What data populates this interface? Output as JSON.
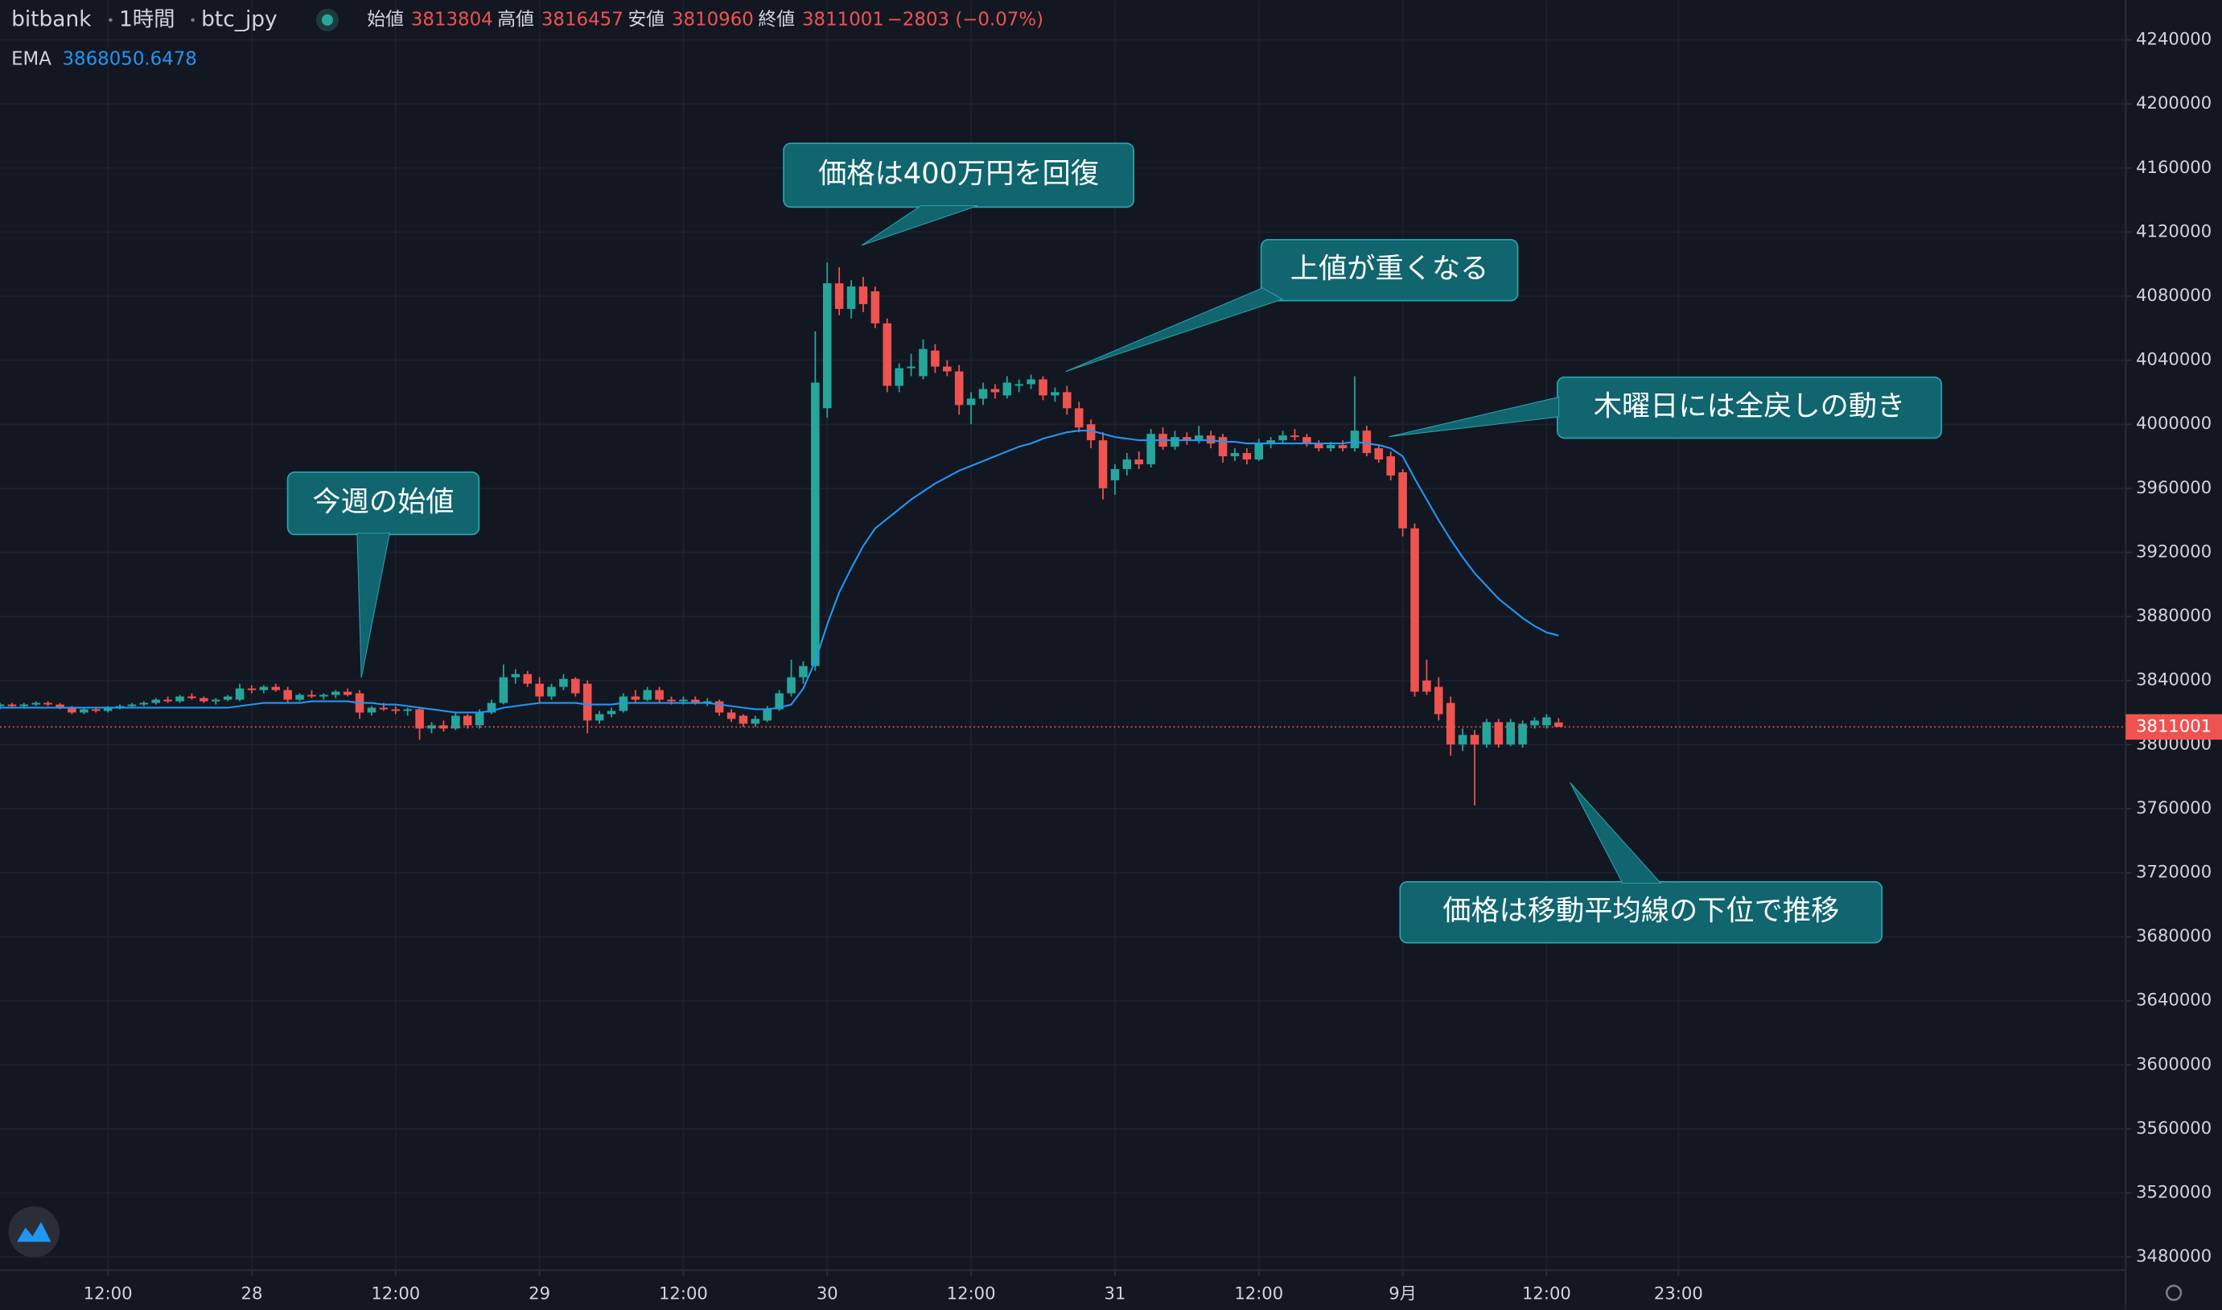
{
  "header": {
    "exchange": "bitbank",
    "interval": "1時間",
    "symbol": "btc_jpy",
    "labels": [
      "始値",
      "高値",
      "安値",
      "終値"
    ],
    "change": "−2803 (−0.07%)"
  },
  "chart_data": {
    "type": "candlestick",
    "up_color": "#26a69a",
    "down_color": "#ef5350",
    "grid": true,
    "xlim": [
      0,
      177.3
    ],
    "ylim": [
      3471800,
      4264800
    ],
    "xticks": [
      {
        "value": 9,
        "label": "12:00"
      },
      {
        "value": 21,
        "label": "28"
      },
      {
        "value": 33,
        "label": "12:00"
      },
      {
        "value": 45,
        "label": "29"
      },
      {
        "value": 57,
        "label": "12:00"
      },
      {
        "value": 69,
        "label": "30"
      },
      {
        "value": 81,
        "label": "12:00"
      },
      {
        "value": 93,
        "label": "31"
      },
      {
        "value": 105,
        "label": "12:00"
      },
      {
        "value": 117,
        "label": "9月"
      },
      {
        "value": 129,
        "label": "12:00"
      },
      {
        "value": 140,
        "label": "23:00"
      }
    ],
    "yticks": [
      3480000,
      3520000,
      3560000,
      3600000,
      3640000,
      3680000,
      3720000,
      3760000,
      3800000,
      3840000,
      3880000,
      3920000,
      3960000,
      4000000,
      4040000,
      4080000,
      4120000,
      4160000,
      4200000,
      4240000
    ],
    "ohlc": [
      [
        3824000,
        3826000,
        3822000,
        3825000
      ],
      [
        3825000,
        3826000,
        3823000,
        3824000
      ],
      [
        3824000,
        3826000,
        3823000,
        3825000
      ],
      [
        3825000,
        3827000,
        3824000,
        3826000
      ],
      [
        3826000,
        3827000,
        3824000,
        3825000
      ],
      [
        3825000,
        3826000,
        3822000,
        3823000
      ],
      [
        3823000,
        3824000,
        3819000,
        3820000
      ],
      [
        3820000,
        3823000,
        3819000,
        3822000
      ],
      [
        3822000,
        3823000,
        3820000,
        3821000
      ],
      [
        3821000,
        3824000,
        3820000,
        3823000
      ],
      [
        3823000,
        3825000,
        3822000,
        3824000
      ],
      [
        3824000,
        3826000,
        3823000,
        3825000
      ],
      [
        3825000,
        3827000,
        3824000,
        3826000
      ],
      [
        3826000,
        3829000,
        3825000,
        3828000
      ],
      [
        3828000,
        3830000,
        3826000,
        3827000
      ],
      [
        3827000,
        3831000,
        3826000,
        3830000
      ],
      [
        3830000,
        3832000,
        3828000,
        3829000
      ],
      [
        3829000,
        3830000,
        3826000,
        3827000
      ],
      [
        3827000,
        3829000,
        3825000,
        3828000
      ],
      [
        3828000,
        3831000,
        3827000,
        3830000
      ],
      [
        3828000,
        3838000,
        3827000,
        3835000
      ],
      [
        3835000,
        3837000,
        3832000,
        3834000
      ],
      [
        3834000,
        3837000,
        3832000,
        3836000
      ],
      [
        3836000,
        3838000,
        3833000,
        3834000
      ],
      [
        3834000,
        3836000,
        3826000,
        3828000
      ],
      [
        3828000,
        3832000,
        3827000,
        3831000
      ],
      [
        3831000,
        3834000,
        3829000,
        3830000
      ],
      [
        3830000,
        3832000,
        3828000,
        3831000
      ],
      [
        3831000,
        3834000,
        3829000,
        3833000
      ],
      [
        3833000,
        3835000,
        3830000,
        3831000
      ],
      [
        3832000,
        3834000,
        3816000,
        3820000
      ],
      [
        3820000,
        3824000,
        3818000,
        3823000
      ],
      [
        3823000,
        3826000,
        3821000,
        3822000
      ],
      [
        3822000,
        3824000,
        3819000,
        3821000
      ],
      [
        3821000,
        3823000,
        3818000,
        3822000
      ],
      [
        3822000,
        3823000,
        3803000,
        3810000
      ],
      [
        3810000,
        3814000,
        3807000,
        3812000
      ],
      [
        3812000,
        3815000,
        3808000,
        3810000
      ],
      [
        3810000,
        3820000,
        3809000,
        3818000
      ],
      [
        3818000,
        3819000,
        3810000,
        3812000
      ],
      [
        3812000,
        3822000,
        3810000,
        3820000
      ],
      [
        3820000,
        3828000,
        3819000,
        3826000
      ],
      [
        3826000,
        3850000,
        3825000,
        3842000
      ],
      [
        3842000,
        3847000,
        3838000,
        3844000
      ],
      [
        3844000,
        3846000,
        3836000,
        3838000
      ],
      [
        3838000,
        3842000,
        3826000,
        3830000
      ],
      [
        3830000,
        3838000,
        3828000,
        3836000
      ],
      [
        3836000,
        3844000,
        3834000,
        3841000
      ],
      [
        3841000,
        3842000,
        3830000,
        3832000
      ],
      [
        3838000,
        3840000,
        3807000,
        3815000
      ],
      [
        3815000,
        3821000,
        3813000,
        3819000
      ],
      [
        3819000,
        3823000,
        3817000,
        3821000
      ],
      [
        3821000,
        3832000,
        3820000,
        3830000
      ],
      [
        3830000,
        3834000,
        3826000,
        3828000
      ],
      [
        3828000,
        3836000,
        3827000,
        3834000
      ],
      [
        3834000,
        3836000,
        3826000,
        3828000
      ],
      [
        3828000,
        3830000,
        3825000,
        3827000
      ],
      [
        3827000,
        3830000,
        3825000,
        3828000
      ],
      [
        3828000,
        3830000,
        3825000,
        3826000
      ],
      [
        3826000,
        3829000,
        3824000,
        3827000
      ],
      [
        3827000,
        3828000,
        3818000,
        3820000
      ],
      [
        3820000,
        3822000,
        3814000,
        3816000
      ],
      [
        3818000,
        3819000,
        3811000,
        3813000
      ],
      [
        3813000,
        3818000,
        3811000,
        3816000
      ],
      [
        3815000,
        3824000,
        3814000,
        3822000
      ],
      [
        3822000,
        3834000,
        3821000,
        3832000
      ],
      [
        3832000,
        3853000,
        3830000,
        3842000
      ],
      [
        3842000,
        3852000,
        3838000,
        3849000
      ],
      [
        3849000,
        4058000,
        3846000,
        4026000
      ],
      [
        4010000,
        4101000,
        4004000,
        4088000
      ],
      [
        4088000,
        4098000,
        4068000,
        4072000
      ],
      [
        4072000,
        4090000,
        4066000,
        4086000
      ],
      [
        4086000,
        4092000,
        4070000,
        4075000
      ],
      [
        4083000,
        4086000,
        4060000,
        4063000
      ],
      [
        4063000,
        4066000,
        4020000,
        4024000
      ],
      [
        4024000,
        4038000,
        4020000,
        4035000
      ],
      [
        4035000,
        4044000,
        4030000,
        4036000
      ],
      [
        4030000,
        4053000,
        4028000,
        4047000
      ],
      [
        4046000,
        4050000,
        4032000,
        4036000
      ],
      [
        4036000,
        4040000,
        4030000,
        4033000
      ],
      [
        4033000,
        4037000,
        4006000,
        4012000
      ],
      [
        4012000,
        4020000,
        4000000,
        4016000
      ],
      [
        4016000,
        4026000,
        4012000,
        4022000
      ],
      [
        4022000,
        4025000,
        4016000,
        4020000
      ],
      [
        4018000,
        4030000,
        4016000,
        4026000
      ],
      [
        4024000,
        4028000,
        4020000,
        4025000
      ],
      [
        4025000,
        4031000,
        4022000,
        4028000
      ],
      [
        4028000,
        4030000,
        4015000,
        4018000
      ],
      [
        4018000,
        4023000,
        4014000,
        4020000
      ],
      [
        4020000,
        4024000,
        4006000,
        4010000
      ],
      [
        4010000,
        4014000,
        3995000,
        3998000
      ],
      [
        4000000,
        4003000,
        3985000,
        3990000
      ],
      [
        3990000,
        3995000,
        3953000,
        3960000
      ],
      [
        3965000,
        3975000,
        3956000,
        3972000
      ],
      [
        3972000,
        3982000,
        3968000,
        3978000
      ],
      [
        3978000,
        3983000,
        3972000,
        3975000
      ],
      [
        3975000,
        3997000,
        3973000,
        3994000
      ],
      [
        3994000,
        3998000,
        3984000,
        3986000
      ],
      [
        3986000,
        3996000,
        3984000,
        3992000
      ],
      [
        3992000,
        3995000,
        3987000,
        3990000
      ],
      [
        3990000,
        3999000,
        3988000,
        3993000
      ],
      [
        3993000,
        3996000,
        3985000,
        3988000
      ],
      [
        3992000,
        3994000,
        3976000,
        3980000
      ],
      [
        3980000,
        3985000,
        3977000,
        3982000
      ],
      [
        3982000,
        3985000,
        3975000,
        3978000
      ],
      [
        3978000,
        3991000,
        3977000,
        3988000
      ],
      [
        3988000,
        3992000,
        3985000,
        3990000
      ],
      [
        3990000,
        3996000,
        3988000,
        3993000
      ],
      [
        3993000,
        3997000,
        3990000,
        3992000
      ],
      [
        3992000,
        3994000,
        3986000,
        3988000
      ],
      [
        3988000,
        3990000,
        3983000,
        3985000
      ],
      [
        3985000,
        3989000,
        3983000,
        3987000
      ],
      [
        3987000,
        3990000,
        3983000,
        3985000
      ],
      [
        3985000,
        4030000,
        3983000,
        3996000
      ],
      [
        3996000,
        3999000,
        3980000,
        3982000
      ],
      [
        3985000,
        3987000,
        3976000,
        3978000
      ],
      [
        3980000,
        3983000,
        3965000,
        3968000
      ],
      [
        3970000,
        3972000,
        3930000,
        3935000
      ],
      [
        3935000,
        3938000,
        3830000,
        3833000
      ],
      [
        3840000,
        3853000,
        3831000,
        3833000
      ],
      [
        3836000,
        3842000,
        3815000,
        3819000
      ],
      [
        3826000,
        3830000,
        3793000,
        3800000
      ],
      [
        3800000,
        3810000,
        3796000,
        3806000
      ],
      [
        3806000,
        3809000,
        3762000,
        3800000
      ],
      [
        3800000,
        3816000,
        3798000,
        3814000
      ],
      [
        3814000,
        3816000,
        3798000,
        3800000
      ],
      [
        3800000,
        3816000,
        3799000,
        3814000
      ],
      [
        3800000,
        3815000,
        3798000,
        3813000
      ],
      [
        3812000,
        3817000,
        3810000,
        3815000
      ],
      [
        3812000,
        3819000,
        3810000,
        3817000
      ],
      [
        3813804,
        3816457,
        3810960,
        3811001
      ]
    ],
    "ema": {
      "name": "EMA",
      "color": "#2196f3",
      "values": [
        3823000,
        3823000,
        3823000,
        3823000,
        3823000,
        3823000,
        3823000,
        3823000,
        3823000,
        3823000,
        3823000,
        3823000,
        3823000,
        3823000,
        3823000,
        3823000,
        3823000,
        3823000,
        3823000,
        3823000,
        3824000,
        3825000,
        3826000,
        3826000,
        3826000,
        3826000,
        3827000,
        3827000,
        3827000,
        3827000,
        3826000,
        3826000,
        3825000,
        3825000,
        3824000,
        3823000,
        3822000,
        3821000,
        3820000,
        3820000,
        3820000,
        3821000,
        3823000,
        3824000,
        3825000,
        3826000,
        3826000,
        3826000,
        3826000,
        3825000,
        3825000,
        3825000,
        3826000,
        3826000,
        3826000,
        3826000,
        3826000,
        3826000,
        3826000,
        3826000,
        3825000,
        3824000,
        3823000,
        3822000,
        3822000,
        3823000,
        3825000,
        3835000,
        3852000,
        3875000,
        3895000,
        3910000,
        3924000,
        3935000,
        3941000,
        3947000,
        3953000,
        3958000,
        3963000,
        3967000,
        3971000,
        3974000,
        3977000,
        3980000,
        3983000,
        3986000,
        3988000,
        3991000,
        3993000,
        3995000,
        3996000,
        3996000,
        3994000,
        3992000,
        3991000,
        3990000,
        3990000,
        3990000,
        3990000,
        3990000,
        3990000,
        3990000,
        3989000,
        3989000,
        3988000,
        3988000,
        3988000,
        3988000,
        3988000,
        3988000,
        3988000,
        3988000,
        3988000,
        3989000,
        3988000,
        3987000,
        3985000,
        3980000,
        3966000,
        3953000,
        3940000,
        3928000,
        3917000,
        3907000,
        3899000,
        3891000,
        3885000,
        3879000,
        3874000,
        3870000,
        3868050.6478
      ]
    },
    "annotations": [
      "今週の始値",
      "価格は400万円を回復",
      "上値が重くなる",
      "木曜日には全戻しの動き",
      "価格は移動平均線の下位で推移"
    ]
  }
}
